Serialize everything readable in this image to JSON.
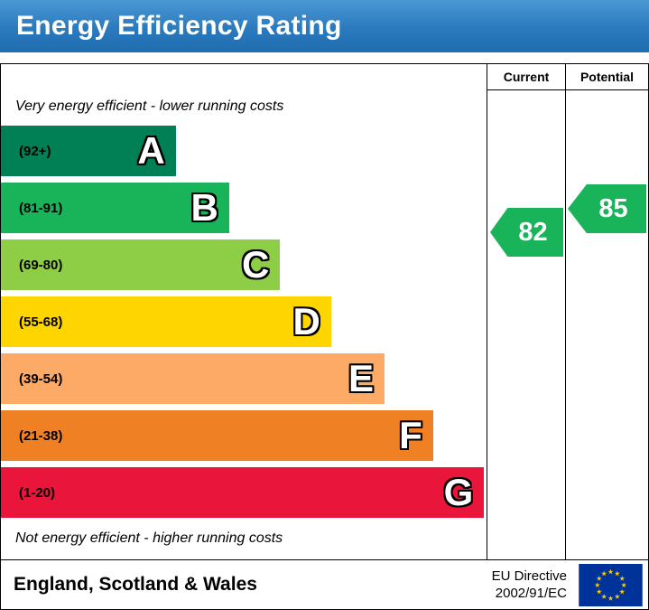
{
  "title": "Energy Efficiency Rating",
  "columns": {
    "current": "Current",
    "potential": "Potential"
  },
  "captions": {
    "top": "Very energy efficient - lower running costs",
    "bottom": "Not energy efficient - higher running costs"
  },
  "bands": [
    {
      "letter": "A",
      "range": "(92+)",
      "color": "#008054",
      "width_pct": 36
    },
    {
      "letter": "B",
      "range": "(81-91)",
      "color": "#19b459",
      "width_pct": 47
    },
    {
      "letter": "C",
      "range": "(69-80)",
      "color": "#8dce46",
      "width_pct": 57.5
    },
    {
      "letter": "D",
      "range": "(55-68)",
      "color": "#ffd500",
      "width_pct": 68
    },
    {
      "letter": "E",
      "range": "(39-54)",
      "color": "#fcaa65",
      "width_pct": 79
    },
    {
      "letter": "F",
      "range": "(21-38)",
      "color": "#ef8023",
      "width_pct": 89
    },
    {
      "letter": "G",
      "range": "(1-20)",
      "color": "#e9153b",
      "width_pct": 99.5
    }
  ],
  "ratings": {
    "current": {
      "value": "82",
      "color": "#19b459"
    },
    "potential": {
      "value": "85",
      "color": "#19b459"
    }
  },
  "footer": {
    "region": "England, Scotland & Wales",
    "directive_line1": "EU Directive",
    "directive_line2": "2002/91/EC"
  },
  "chart_data": {
    "type": "bar",
    "orientation": "horizontal",
    "title": "Energy Efficiency Rating",
    "categories": [
      "A",
      "B",
      "C",
      "D",
      "E",
      "F",
      "G"
    ],
    "band_ranges": [
      "92+",
      "81-91",
      "69-80",
      "55-68",
      "39-54",
      "21-38",
      "1-20"
    ],
    "band_colors": [
      "#008054",
      "#19b459",
      "#8dce46",
      "#ffd500",
      "#fcaa65",
      "#ef8023",
      "#e9153b"
    ],
    "bar_relative_widths_pct": [
      36,
      47,
      57.5,
      68,
      79,
      89,
      99.5
    ],
    "scale": [
      1,
      100
    ],
    "current_rating": 82,
    "potential_rating": 85,
    "rating_arrow_color": "#19b459",
    "annotations": [
      "Very energy efficient - lower running costs",
      "Not energy efficient - higher running costs"
    ],
    "column_headers": [
      "Current",
      "Potential"
    ],
    "region_label": "England, Scotland & Wales",
    "directive": "EU Directive 2002/91/EC"
  }
}
